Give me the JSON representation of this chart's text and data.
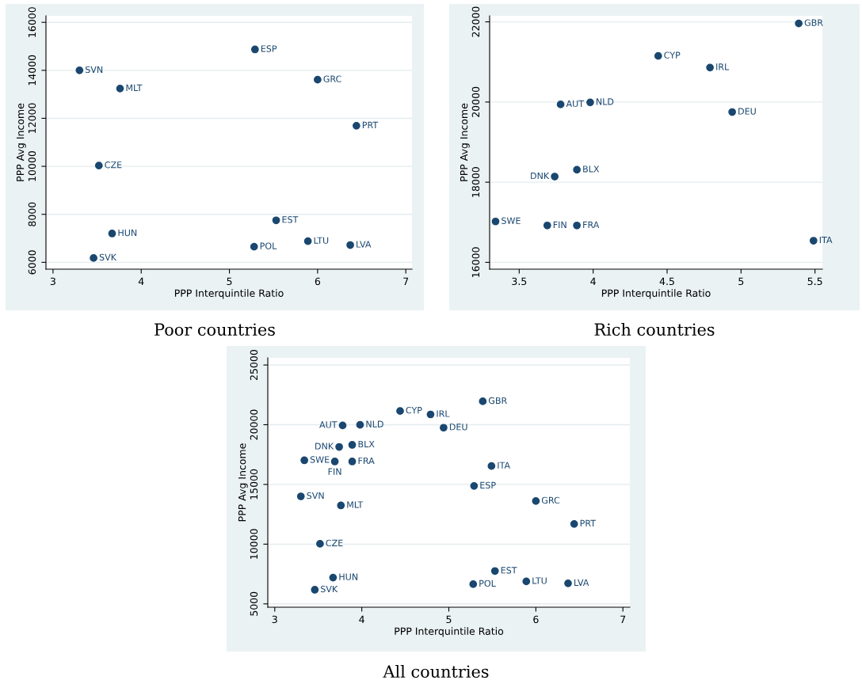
{
  "chart_data": [
    {
      "type": "scatter",
      "title": "Poor countries",
      "xlabel": "PPP Interquintile Ratio",
      "ylabel": "PPP Avg Income",
      "xlim": [
        2.92,
        7.07
      ],
      "ylim": [
        5715,
        16270
      ],
      "xticks": [
        3,
        4,
        5,
        6,
        7
      ],
      "yticks": [
        6000,
        8000,
        10000,
        12000,
        14000,
        16000
      ],
      "grid": "y",
      "marker": "circle",
      "series": [
        {
          "color": "#1a476f",
          "x": [
            3.3,
            3.76,
            5.29,
            6.0,
            6.44,
            3.52,
            5.53,
            3.67,
            5.89,
            6.37,
            5.28,
            3.46
          ],
          "values": [
            14000,
            13240,
            14870,
            13610,
            11690,
            10030,
            7750,
            7200,
            6880,
            6720,
            6650,
            6180
          ]
        }
      ],
      "annotations": [
        {
          "text": "SVN",
          "x": 3.3,
          "y": 14000
        },
        {
          "text": "MLT",
          "x": 3.76,
          "y": 13240
        },
        {
          "text": "ESP",
          "x": 5.29,
          "y": 14870
        },
        {
          "text": "GRC",
          "x": 6.0,
          "y": 13610
        },
        {
          "text": "PRT",
          "x": 6.44,
          "y": 11690
        },
        {
          "text": "CZE",
          "x": 3.52,
          "y": 10030
        },
        {
          "text": "EST",
          "x": 5.53,
          "y": 7750
        },
        {
          "text": "HUN",
          "x": 3.67,
          "y": 7200
        },
        {
          "text": "LTU",
          "x": 5.89,
          "y": 6880
        },
        {
          "text": "LVA",
          "x": 6.37,
          "y": 6720
        },
        {
          "text": "POL",
          "x": 5.28,
          "y": 6650
        },
        {
          "text": "SVK",
          "x": 3.46,
          "y": 6180
        }
      ]
    },
    {
      "type": "scatter",
      "title": "Rich countries",
      "xlabel": "PPP Interquintile Ratio",
      "ylabel": "PPP Avg Income",
      "xlim": [
        3.3,
        5.55
      ],
      "ylim": [
        15830,
        22150
      ],
      "xticks": [
        3.5,
        4,
        4.5,
        5,
        5.5
      ],
      "yticks": [
        16000,
        18000,
        20000,
        22000
      ],
      "grid": "y",
      "marker": "circle",
      "series": [
        {
          "color": "#1a476f",
          "x": [
            5.39,
            4.44,
            4.79,
            3.78,
            3.98,
            4.94,
            3.89,
            3.74,
            3.34,
            3.69,
            3.89,
            5.49
          ],
          "values": [
            21960,
            21150,
            20860,
            19940,
            19990,
            19750,
            18310,
            18140,
            17020,
            16920,
            16920,
            16540
          ]
        }
      ],
      "annotations": [
        {
          "text": "GBR",
          "x": 5.39,
          "y": 21960
        },
        {
          "text": "CYP",
          "x": 4.44,
          "y": 21150
        },
        {
          "text": "IRL",
          "x": 4.79,
          "y": 20860
        },
        {
          "text": "AUT",
          "x": 3.78,
          "y": 19940
        },
        {
          "text": "NLD",
          "x": 3.98,
          "y": 19990
        },
        {
          "text": "DEU",
          "x": 4.94,
          "y": 19750
        },
        {
          "text": "BLX",
          "x": 3.89,
          "y": 18310
        },
        {
          "text": "DNK",
          "x": 3.74,
          "y": 18140
        },
        {
          "text": "SWE",
          "x": 3.34,
          "y": 17020
        },
        {
          "text": "FIN",
          "x": 3.69,
          "y": 16920
        },
        {
          "text": "FRA",
          "x": 3.89,
          "y": 16920
        },
        {
          "text": "ITA",
          "x": 5.49,
          "y": 16540
        }
      ]
    },
    {
      "type": "scatter",
      "title": "All countries",
      "xlabel": "PPP Interquintile Ratio",
      "ylabel": "PPP Avg Income",
      "xlim": [
        2.92,
        7.08
      ],
      "ylim": [
        4720,
        25600
      ],
      "xticks": [
        3,
        4,
        5,
        6,
        7
      ],
      "yticks": [
        5000,
        10000,
        15000,
        20000,
        25000
      ],
      "grid": "y",
      "marker": "circle",
      "series": [
        {
          "color": "#1a476f",
          "x": [
            3.3,
            3.76,
            5.29,
            6.0,
            6.44,
            3.52,
            5.53,
            3.67,
            5.89,
            6.37,
            5.28,
            3.46,
            5.39,
            4.44,
            4.79,
            3.78,
            3.98,
            4.94,
            3.89,
            3.74,
            3.34,
            3.69,
            3.89,
            5.49
          ],
          "values": [
            14000,
            13240,
            14870,
            13610,
            11690,
            10030,
            7750,
            7200,
            6880,
            6720,
            6650,
            6180,
            21960,
            21150,
            20860,
            19940,
            19990,
            19750,
            18310,
            18140,
            17020,
            16920,
            16920,
            16540
          ]
        }
      ],
      "annotations": [
        {
          "text": "SVN",
          "x": 3.3,
          "y": 14000
        },
        {
          "text": "MLT",
          "x": 3.76,
          "y": 13240
        },
        {
          "text": "ESP",
          "x": 5.29,
          "y": 14870
        },
        {
          "text": "GRC",
          "x": 6.0,
          "y": 13610
        },
        {
          "text": "PRT",
          "x": 6.44,
          "y": 11690
        },
        {
          "text": "CZE",
          "x": 3.52,
          "y": 10030
        },
        {
          "text": "EST",
          "x": 5.53,
          "y": 7750
        },
        {
          "text": "HUN",
          "x": 3.67,
          "y": 7200
        },
        {
          "text": "LTU",
          "x": 5.89,
          "y": 6880
        },
        {
          "text": "LVA",
          "x": 6.37,
          "y": 6720
        },
        {
          "text": "POL",
          "x": 5.28,
          "y": 6650
        },
        {
          "text": "SVK",
          "x": 3.46,
          "y": 6180
        },
        {
          "text": "GBR",
          "x": 5.39,
          "y": 21960
        },
        {
          "text": "CYP",
          "x": 4.44,
          "y": 21150
        },
        {
          "text": "IRL",
          "x": 4.79,
          "y": 20860
        },
        {
          "text": "AUT",
          "x": 3.78,
          "y": 19940
        },
        {
          "text": "NLD",
          "x": 3.98,
          "y": 19990
        },
        {
          "text": "DEU",
          "x": 4.94,
          "y": 19750
        },
        {
          "text": "BLX",
          "x": 3.89,
          "y": 18310
        },
        {
          "text": "DNK",
          "x": 3.74,
          "y": 18140
        },
        {
          "text": "SWE",
          "x": 3.34,
          "y": 17020
        },
        {
          "text": "FIN",
          "x": 3.69,
          "y": 16920
        },
        {
          "text": "FRA",
          "x": 3.89,
          "y": 16920
        },
        {
          "text": "ITA",
          "x": 5.49,
          "y": 16540
        }
      ]
    }
  ]
}
